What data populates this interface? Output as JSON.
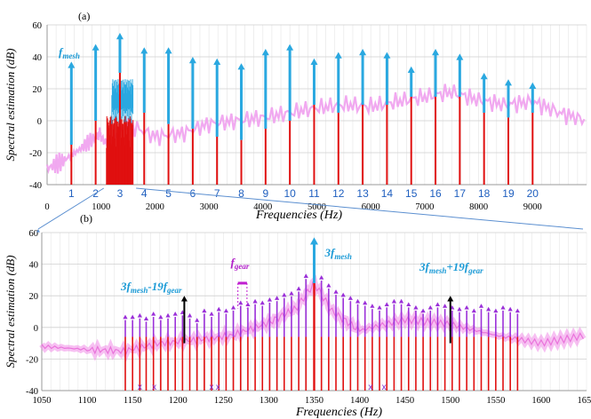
{
  "chart_data": [
    {
      "panel": "(a)",
      "type": "line",
      "xlabel": "Frequencies (Hz)",
      "ylabel": "Spectral estimation (dB)",
      "xlim": [
        0,
        10000
      ],
      "ylim": [
        -40,
        60
      ],
      "x_ticks": [
        0,
        1000,
        2000,
        3000,
        4000,
        5000,
        6000,
        7000,
        8000,
        9000
      ],
      "y_ticks": [
        -40,
        -20,
        0,
        20,
        40,
        60
      ],
      "harmonic_labels": [
        "1",
        "2",
        "3",
        "4",
        "5",
        "6",
        "7",
        "8",
        "9",
        "10",
        "11",
        "12",
        "13",
        "14",
        "15",
        "16",
        "17",
        "18",
        "19",
        "20"
      ],
      "harmonic_x": [
        450,
        900,
        1350,
        1800,
        2250,
        2700,
        3150,
        3600,
        4050,
        4500,
        4950,
        5400,
        5850,
        6300,
        6750,
        7200,
        7650,
        8100,
        8550,
        9000
      ],
      "harmonic_base_y": [
        -15,
        0,
        30,
        5,
        -2,
        -5,
        -10,
        -12,
        -5,
        0,
        10,
        5,
        10,
        10,
        15,
        15,
        15,
        5,
        2,
        5
      ],
      "harmonic_peak_y": [
        37,
        48,
        55,
        46,
        46,
        40,
        39,
        36,
        45,
        48,
        39,
        43,
        45,
        43,
        34,
        45,
        42,
        30,
        26,
        24
      ],
      "fmesh_label": "f",
      "fmesh_sub": "mesh",
      "series": [
        {
          "type": "line",
          "color": "#f0a0ee",
          "x": [
            0,
            300,
            600,
            900,
            1000,
            1200,
            1500,
            2000,
            2500,
            3000,
            3500,
            4000,
            4500,
            5000,
            5500,
            6000,
            6500,
            7000,
            7500,
            8000,
            8500,
            9000,
            9500,
            10000
          ],
          "values": [
            -30,
            -25,
            -18,
            -10,
            -8,
            -12,
            -2,
            -10,
            -8,
            -2,
            0,
            2,
            5,
            8,
            10,
            9,
            12,
            15,
            18,
            13,
            10,
            12,
            5,
            0
          ]
        },
        {
          "type": "bar-cluster",
          "color": "#e01010",
          "x_range": [
            1100,
            1600
          ],
          "peak": 5
        },
        {
          "type": "bar-cluster",
          "color": "#2aa8e0",
          "x_range": [
            1200,
            1600
          ],
          "peak": 22
        }
      ]
    },
    {
      "panel": "(b)",
      "type": "line",
      "xlabel": "Frequencies (Hz)",
      "ylabel": "Spectral estimation (dB)",
      "xlim": [
        1050,
        1650
      ],
      "ylim": [
        -40,
        60
      ],
      "x_ticks": [
        1050,
        1100,
        1150,
        1200,
        1250,
        1300,
        1350,
        1400,
        1450,
        1500,
        1550,
        1600,
        1650
      ],
      "y_ticks": [
        -40,
        -20,
        0,
        20,
        40,
        60
      ],
      "center": {
        "x": 1350,
        "y": 28,
        "peak": 57,
        "label": "3f",
        "sub": "mesh"
      },
      "left_sideband": {
        "x": 1207,
        "label_main": "3f",
        "label_sub1": "mesh",
        "label_mid": "-19f",
        "label_sub2": "gear"
      },
      "right_sideband": {
        "x": 1500,
        "label_main": "3f",
        "label_sub1": "mesh",
        "label_mid": "+19f",
        "label_sub2": "gear"
      },
      "fgear_label": "f",
      "fgear_sub": "gear",
      "sideband_x": [
        1142,
        1150,
        1158,
        1165,
        1173,
        1181,
        1189,
        1197,
        1205,
        1213,
        1221,
        1229,
        1237,
        1245,
        1253,
        1261,
        1269,
        1277,
        1285,
        1293,
        1301,
        1309,
        1317,
        1325,
        1333,
        1341,
        1350,
        1358,
        1366,
        1374,
        1382,
        1390,
        1398,
        1406,
        1414,
        1422,
        1430,
        1438,
        1446,
        1454,
        1462,
        1470,
        1478,
        1486,
        1494,
        1502,
        1510,
        1518,
        1526,
        1534,
        1542,
        1550,
        1558,
        1566,
        1574
      ],
      "sideband_peak_y": [
        8,
        8,
        9,
        7,
        10,
        8,
        9,
        10,
        11,
        9,
        6,
        12,
        10,
        13,
        12,
        14,
        17,
        16,
        18,
        17,
        19,
        20,
        22,
        23,
        26,
        34,
        57,
        33,
        28,
        24,
        22,
        20,
        18,
        17,
        15,
        14,
        16,
        18,
        18,
        16,
        14,
        12,
        14,
        16,
        15,
        14,
        13,
        14,
        12,
        15,
        13,
        12,
        14,
        13,
        12
      ],
      "markers_x": [
        1158,
        1174,
        1237,
        1244,
        1412,
        1427
      ],
      "marker_symbol": "x",
      "series": [
        {
          "type": "line",
          "color": "#f08ce8",
          "x": [
            1050,
            1100,
            1140,
            1180,
            1220,
            1260,
            1300,
            1330,
            1350,
            1370,
            1400,
            1450,
            1500,
            1550,
            1600,
            1650
          ],
          "values": [
            -12,
            -14,
            -15,
            -10,
            -8,
            -5,
            3,
            12,
            28,
            10,
            -2,
            5,
            2,
            -5,
            -10,
            -5
          ]
        }
      ]
    }
  ],
  "panel_a_label": "(a)",
  "panel_b_label": "(b)"
}
